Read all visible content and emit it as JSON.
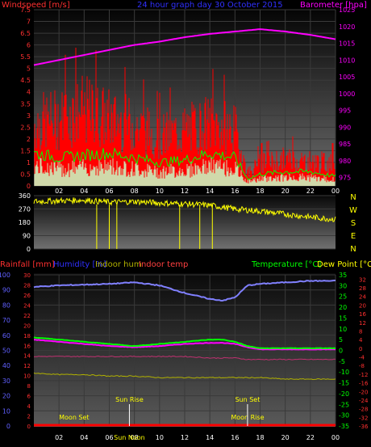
{
  "header": {
    "left": "Windspeed [m/s]",
    "center": "24 hour graph day  30 October 2015",
    "right": "Barometer [hpa]"
  },
  "colors": {
    "windspeed": "#ff0000",
    "barometer": "#ff00ff",
    "gust_green": "#00ff00",
    "calm_white": "#c8ffc8",
    "direction": "#ffff00",
    "rainfall": "#ff0000",
    "humidity": "#8080ff",
    "indoor_hum": "#b0b000",
    "indoor_temp": "#c03070",
    "temperature": "#00ff00",
    "dewpoint": "#ff00ff",
    "label_humidity": "#3030ff",
    "label_dewpoint": "#ffff00",
    "label_indoor_temp": "#ff4040",
    "label_temperature": "#00ff00",
    "label_rainfall": "#ff3030",
    "axis_blue": "#6060ff",
    "axis_red": "#ff3030",
    "axis_green": "#00ff00"
  },
  "chart_data": [
    {
      "id": "wind-baro",
      "type": "area",
      "title": "24 hour graph day  30 October 2015",
      "ylabel_left": "Windspeed [m/s]",
      "ylabel_right": "Barometer [hpa]",
      "x_tick_labels": [
        "02",
        "04",
        "06",
        "08",
        "10",
        "12",
        "14",
        "16",
        "18",
        "20",
        "22",
        "00"
      ],
      "y_left_ticks": [
        "0",
        "0.5",
        "1",
        "1.5",
        "2",
        "2.5",
        "3",
        "3.5",
        "4",
        "4.5",
        "5",
        "5.5",
        "6",
        "6.5",
        "7",
        "7.5"
      ],
      "y_right_ticks": [
        "975",
        "980",
        "985",
        "990",
        "995",
        "1000",
        "1005",
        "1010",
        "1015",
        "1020",
        "1025"
      ],
      "ylim_left": [
        0,
        7.5
      ],
      "ylim_right": [
        972.5,
        1025
      ],
      "grid": true,
      "series": [
        {
          "kind": "bar",
          "x_hours": [
            0,
            2,
            4,
            6,
            8,
            10,
            12,
            14,
            16,
            17,
            18,
            20,
            22,
            24
          ],
          "values": [
            2.8,
            3.0,
            3.4,
            3.0,
            2.7,
            2.2,
            2.5,
            2.8,
            2.5,
            0.6,
            1.0,
            1.2,
            1.1,
            1.0
          ]
        },
        {
          "kind": "line",
          "x_hours": [
            0,
            2,
            4,
            6,
            8,
            10,
            12,
            14,
            16,
            17,
            18,
            20,
            22,
            24
          ],
          "values": [
            1.4,
            1.2,
            1.3,
            1.4,
            1.2,
            1.0,
            1.1,
            1.4,
            1.2,
            0.3,
            0.5,
            0.6,
            0.6,
            0.4
          ]
        },
        {
          "kind": "line",
          "x_hours": [
            0,
            2,
            4,
            6,
            8,
            10,
            12,
            14,
            16,
            18,
            20,
            22,
            24
          ],
          "values": [
            1008.5,
            1010,
            1011.5,
            1013,
            1014.5,
            1015.5,
            1016.8,
            1017.8,
            1018.5,
            1019.2,
            1018.5,
            1017.5,
            1016.2
          ]
        }
      ]
    },
    {
      "id": "wind-direction",
      "type": "scatter",
      "y_left_ticks": [
        "0",
        "90",
        "180",
        "270",
        "360"
      ],
      "y_right_labels": [
        "N",
        "W",
        "S",
        "E",
        "N"
      ],
      "ylim": [
        0,
        360
      ],
      "x_hours": [
        0,
        2,
        4,
        6,
        8,
        10,
        12,
        14,
        16,
        18,
        20,
        22,
        24
      ],
      "values": [
        320,
        325,
        330,
        315,
        320,
        310,
        305,
        295,
        270,
        255,
        235,
        215,
        200
      ]
    },
    {
      "id": "temp-hum",
      "type": "line",
      "labels": {
        "rainfall": "Rainfall [mm]",
        "humidity": "Humidity [%]",
        "indoor_hum": "Indoor hum",
        "indoor_temp": "Indoor temp",
        "temperature": "Temperature [°C]",
        "dewpoint": "Dew Point [°C]"
      },
      "y_hum_ticks": [
        "0",
        "10",
        "20",
        "30",
        "40",
        "50",
        "60",
        "70",
        "80",
        "90",
        "100"
      ],
      "y_rain_ticks": [
        "0",
        "2",
        "4",
        "6",
        "8",
        "10",
        "12",
        "14",
        "16",
        "18",
        "20",
        "22",
        "24",
        "26",
        "28",
        "30"
      ],
      "y_temp_ticks": [
        "-35",
        "-30",
        "-25",
        "-20",
        "-15",
        "-10",
        "-5",
        "0",
        "5",
        "10",
        "15",
        "20",
        "25",
        "30",
        "35"
      ],
      "y_inner_ticks": [
        "-36",
        "-32",
        "-28",
        "-24",
        "-20",
        "-16",
        "-12",
        "-8",
        "-4",
        "0",
        "4",
        "8",
        "12",
        "16",
        "20",
        "24",
        "28",
        "32"
      ],
      "x_tick_labels": [
        "02",
        "04",
        "06",
        "08",
        "10",
        "12",
        "14",
        "16",
        "18",
        "20",
        "22",
        "00"
      ],
      "x_hours": [
        0,
        2,
        4,
        6,
        8,
        10,
        12,
        14,
        15,
        16,
        17,
        18,
        20,
        22,
        24
      ],
      "humidity": [
        92,
        93,
        93.5,
        94,
        95,
        93,
        88,
        84,
        83,
        85,
        93,
        94,
        95,
        96,
        96
      ],
      "temperature": [
        6,
        5,
        4,
        3,
        2,
        3,
        4,
        5,
        5,
        4,
        2,
        1,
        1,
        1,
        1
      ],
      "dewpoint": [
        5,
        4,
        3,
        2,
        1.5,
        2,
        3,
        3.5,
        3.5,
        3,
        1.5,
        0.5,
        0.5,
        0.5,
        0.5
      ],
      "indoor_hum": [
        35,
        34,
        34,
        33,
        33,
        32,
        32,
        32,
        32,
        32,
        32,
        32,
        31,
        31,
        31
      ],
      "indoor_temp": [
        46,
        46,
        46,
        46,
        46,
        46,
        46,
        45,
        45,
        45,
        44,
        44,
        44,
        44,
        44
      ],
      "rainfall": [
        0,
        0,
        0,
        0,
        0,
        0,
        0,
        0,
        0,
        0,
        0,
        0,
        0,
        0,
        0
      ],
      "annotations": {
        "sun_rise": "Sun Rise",
        "sun_set": "Sun Set",
        "moon_set": "Moon Set",
        "moon_rise": "Moon Rise",
        "noon": "Sun Noon"
      }
    }
  ]
}
